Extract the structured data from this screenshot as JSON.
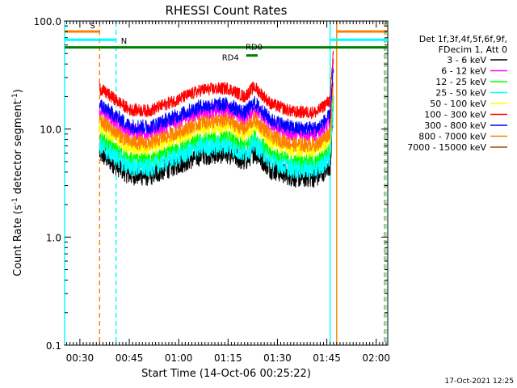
{
  "chart_data": {
    "type": "line",
    "title": "RHESSI Count Rates",
    "xlabel": "Start Time (14-Oct-06 00:25:22)",
    "ylabel": "Count Rate (s",
    "ylabel_sup": "-1",
    "ylabel_tail": " detector segment",
    "ylabel_sup2": "-1",
    "ylabel_end": ")",
    "y_scale": "log",
    "ylim": [
      0.1,
      100
    ],
    "xlim": [
      "00:25:22",
      "02:03:30"
    ],
    "x_ticks": [
      "00:30",
      "00:45",
      "01:00",
      "01:15",
      "01:30",
      "01:45",
      "02:00"
    ],
    "y_ticks": [
      "0.1",
      "1.0",
      "10.0",
      "100.0"
    ],
    "timestamp": "17-Oct-2021 12:25",
    "legend": {
      "placement": "right",
      "header": [
        "Det 1f,3f,4f,5f,6f,9f,",
        "FDecim 1, Att 0"
      ],
      "entries": [
        {
          "label": "3 - 6 keV",
          "color": "#000000"
        },
        {
          "label": "6 - 12 keV",
          "color": "#ff00ff"
        },
        {
          "label": "12 - 25 keV",
          "color": "#00ff00"
        },
        {
          "label": "25 - 50 keV",
          "color": "#00ffff"
        },
        {
          "label": "50 - 100 keV",
          "color": "#ffff00"
        },
        {
          "label": "100 - 300 keV",
          "color": "#ff0000"
        },
        {
          "label": "300 - 800 keV",
          "color": "#0000ff"
        },
        {
          "label": "800 - 7000 keV",
          "color": "#ff8000"
        },
        {
          "label": "7000 - 15000 keV",
          "color": "#a05000"
        }
      ]
    },
    "data_window": [
      "00:36:00",
      "01:47:00"
    ],
    "series": [
      {
        "name": "3 - 6 keV",
        "color": "#000000",
        "noise": 0.1,
        "offset": 0.0
      },
      {
        "name": "6 - 12 keV",
        "color": "#ff00ff",
        "noise": 0.08,
        "offset": 0.4
      },
      {
        "name": "12 - 25 keV",
        "color": "#00ff00",
        "noise": 0.08,
        "offset": 0.13
      },
      {
        "name": "25 - 50 keV",
        "color": "#00ffff",
        "noise": 0.09,
        "offset": 0.07
      },
      {
        "name": "50 - 100 keV",
        "color": "#ffff00",
        "noise": 0.07,
        "offset": 0.25
      },
      {
        "name": "100 - 300 keV",
        "color": "#ff0000",
        "noise": 0.06,
        "offset": 0.6
      },
      {
        "name": "300 - 800 keV",
        "color": "#0000ff",
        "noise": 0.07,
        "offset": 0.45
      },
      {
        "name": "800 - 7000 keV",
        "color": "#ff8000",
        "noise": 0.07,
        "offset": 0.3
      }
    ],
    "baseline_profile": [
      {
        "t": "00:36:00",
        "v": 6.0
      },
      {
        "t": "00:45:00",
        "v": 3.8
      },
      {
        "t": "00:51:00",
        "v": 3.7
      },
      {
        "t": "00:58:00",
        "v": 4.5
      },
      {
        "t": "01:07:00",
        "v": 5.8
      },
      {
        "t": "01:15:00",
        "v": 6.0
      },
      {
        "t": "01:20:00",
        "v": 5.0
      },
      {
        "t": "01:23:00",
        "v": 6.2
      },
      {
        "t": "01:28:00",
        "v": 4.3
      },
      {
        "t": "01:35:00",
        "v": 3.6
      },
      {
        "t": "01:42:00",
        "v": 3.6
      },
      {
        "t": "01:47:00",
        "v": 5.0
      }
    ],
    "end_spike": {
      "t_start": "01:46:00",
      "t_end": "01:47:00"
    },
    "attenuator_bars": [
      {
        "label": "S",
        "color": "#ff8000",
        "t_start": "00:25:22",
        "t_end": "00:36:00",
        "t2_start": "01:48:00",
        "t2_end": "02:03:30",
        "v": 80
      },
      {
        "label": "N",
        "color": "#00ffff",
        "t_start": "00:25:22",
        "t_end": "00:41:00",
        "t2_start": "01:46:00",
        "t2_end": "02:03:30",
        "v": 67
      },
      {
        "label": "RD0",
        "color": "#008000",
        "t_start": "00:25:22",
        "t_end": "02:03:30",
        "v": 57
      },
      {
        "label": "RD4",
        "color": "#008000",
        "t_start": "01:20:30",
        "t_end": "01:24:00",
        "v": 48
      }
    ],
    "vertical_markers": [
      {
        "t": "00:36:00",
        "color": "#ff8000",
        "style": "dashed"
      },
      {
        "t": "00:41:00",
        "color": "#00ffff",
        "style": "dashed"
      },
      {
        "t": "00:25:22",
        "color": "#00ffff",
        "style": "solid"
      },
      {
        "t": "01:46:00",
        "color": "#00ffff",
        "style": "solid"
      },
      {
        "t": "01:48:00",
        "color": "#ff8000",
        "style": "solid"
      },
      {
        "t": "02:02:30",
        "color": "#ff8000",
        "style": "dashed"
      },
      {
        "t": "02:03:00",
        "color": "#00ffff",
        "style": "dashed"
      }
    ]
  }
}
